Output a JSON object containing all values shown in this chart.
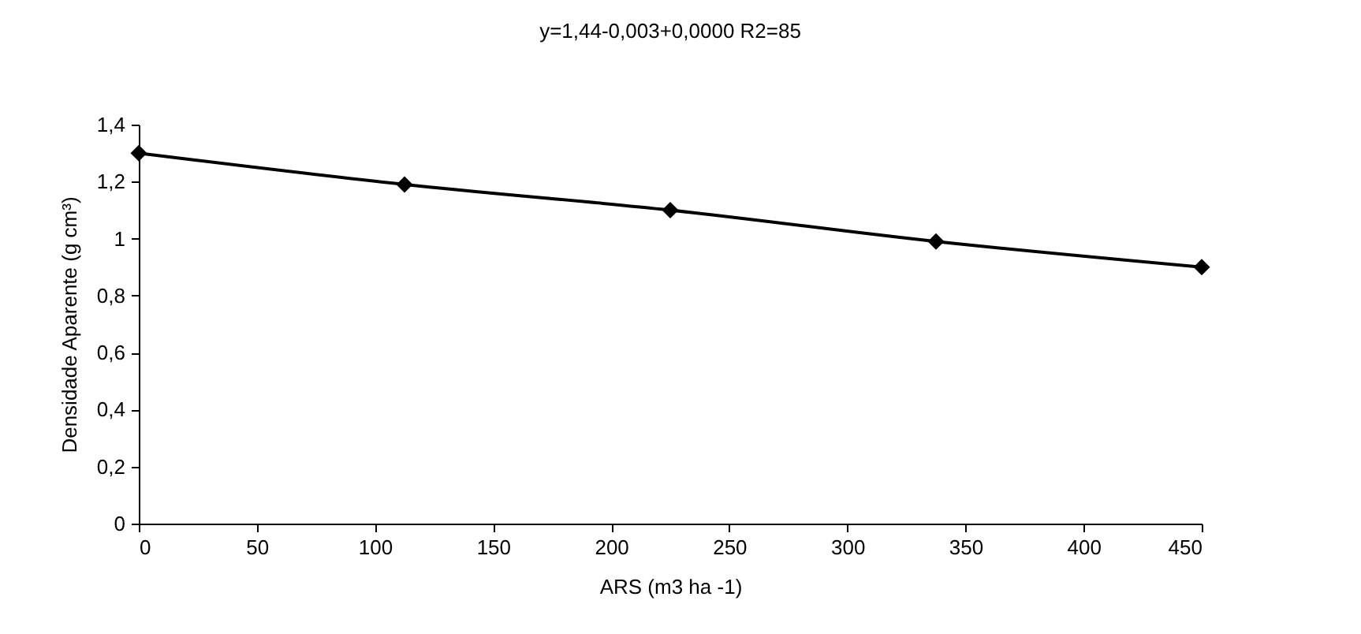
{
  "chart_data": {
    "type": "line",
    "title": "y=1,44-0,003+0,0000 R2=85",
    "xlabel": "ARS (m3 ha -1)",
    "ylabel": "Densidade Aparente (g cm³)",
    "x": [
      0,
      112.5,
      225,
      337.5,
      450
    ],
    "series": [
      {
        "color": "#000000",
        "values": [
          1.3,
          1.19,
          1.1,
          0.99,
          0.9
        ]
      }
    ],
    "xlim": [
      0,
      450
    ],
    "xticks": [
      0,
      50,
      100,
      150,
      200,
      250,
      300,
      350,
      400,
      450
    ],
    "ylim": [
      0,
      1.4
    ],
    "yticks": [
      0,
      {
        "value": 0.2,
        "label": "0,2"
      },
      {
        "value": 0.4,
        "label": "0,4"
      },
      {
        "value": 0.6,
        "label": "0,6"
      },
      {
        "value": 0.8,
        "label": "0,8"
      },
      1,
      {
        "value": 1.2,
        "label": "1,2"
      },
      {
        "value": 1.4,
        "label": "1,4"
      }
    ],
    "grid": false,
    "marker": "diamond",
    "line_style": "solid"
  }
}
